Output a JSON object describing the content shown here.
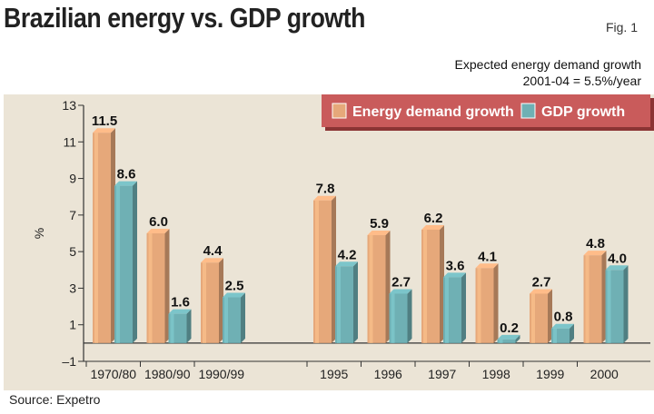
{
  "header": {
    "title": "Brazilian energy vs. GDP growth",
    "fig_label": "Fig. 1",
    "note_line1": "Expected energy demand growth",
    "note_line2": "2001-04 = 5.5%/year"
  },
  "footer": {
    "source": "Source: Expetro"
  },
  "chart_data": {
    "type": "bar",
    "categories": [
      "1970/80",
      "1980/90",
      "1990/99",
      "1995",
      "1996",
      "1997",
      "1998",
      "1999",
      "2000"
    ],
    "series": [
      {
        "name": "Energy demand growth",
        "values": [
          11.5,
          6.0,
          4.4,
          7.8,
          5.9,
          6.2,
          4.1,
          2.7,
          4.8
        ],
        "color": "#e6a87a"
      },
      {
        "name": "GDP growth",
        "values": [
          8.6,
          1.6,
          2.5,
          4.2,
          2.7,
          3.6,
          0.2,
          0.8,
          4.0
        ],
        "color": "#6fb0b4"
      }
    ],
    "value_labels": [
      [
        "11.5",
        "6.0",
        "4.4",
        "7.8",
        "5.9",
        "6.2",
        "4.1",
        "2.7",
        "4.8"
      ],
      [
        "8.6",
        "1.6",
        "2.5",
        "4.2",
        "2.7",
        "3.6",
        "0.2",
        "0.8",
        "4.0"
      ]
    ],
    "ylabel": "%",
    "ylim": [
      -1,
      13
    ],
    "yticks": [
      -1,
      1,
      3,
      5,
      7,
      9,
      11,
      13
    ],
    "ytick_labels": [
      "–1",
      "1",
      "3",
      "5",
      "7",
      "9",
      "11",
      "13"
    ],
    "legend_position": "top-right",
    "colors": {
      "panel_bg": "#ebe4d6",
      "legend_bg": "#c95b5b",
      "axis": "#333333"
    }
  }
}
